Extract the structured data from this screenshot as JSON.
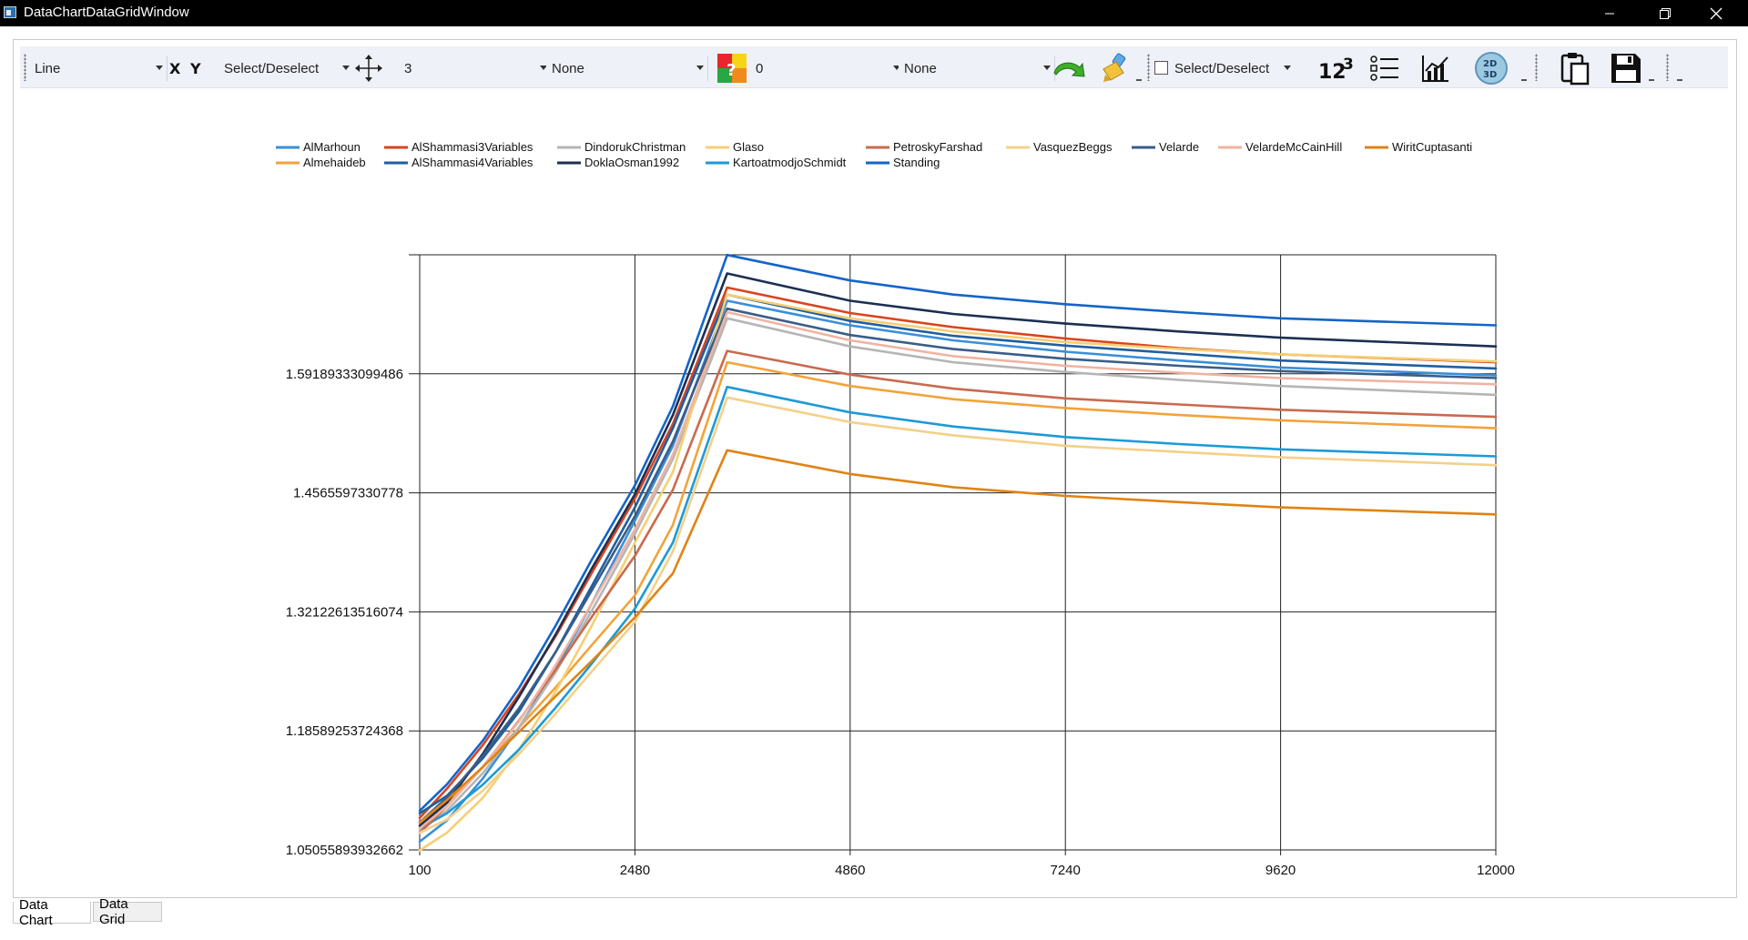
{
  "window": {
    "title": "DataChartDataGridWindow"
  },
  "toolbar": {
    "chart_type": "Line",
    "select_deselect_1": "Select/Deselect",
    "line_width": "3",
    "marker": "None",
    "offset": "0",
    "fill": "None",
    "select_deselect_2": "Select/Deselect",
    "icons": [
      "x-axis-icon",
      "y-axis-icon",
      "move-cross-icon",
      "color-palette-icon",
      "undo-arrow-icon",
      "paint-brush-icon",
      "number-format-icon",
      "legend-list-icon",
      "chart-line-icon",
      "2d-3d-toggle-icon",
      "clipboard-copy-icon",
      "save-disk-icon"
    ]
  },
  "tabs": [
    "Data Chart",
    "Data Grid"
  ],
  "chart_data": {
    "type": "line",
    "x_ticks": [
      "100",
      "2480",
      "4860",
      "7240",
      "9620",
      "12000"
    ],
    "y_ticks": [
      "1.05055893932662",
      "1.18589253724368",
      "1.32122613516074",
      "1.4565597330778",
      "1.59189333099486"
    ],
    "xlim": [
      100,
      12000
    ],
    "ylim": [
      1.05055893932662,
      1.7272269289119
    ],
    "grid": true,
    "legend_position": "top",
    "series": [
      {
        "name": "AlMarhoun",
        "color": "#3a8fd9",
        "x": [
          100,
          400,
          800,
          1200,
          1600,
          2000,
          2480,
          2900,
          3500,
          4860,
          6000,
          7240,
          8500,
          9620,
          12000
        ],
        "y": [
          1.06,
          1.084,
          1.132,
          1.19,
          1.255,
          1.33,
          1.425,
          1.51,
          1.675,
          1.647,
          1.63,
          1.617,
          1.607,
          1.599,
          1.59
        ]
      },
      {
        "name": "Almehaideb",
        "color": "#f2a33a",
        "x": [
          100,
          400,
          800,
          1200,
          1600,
          2000,
          2480,
          2900,
          3500,
          4860,
          6000,
          7240,
          8500,
          9620,
          12000
        ],
        "y": [
          1.078,
          1.104,
          1.145,
          1.19,
          1.235,
          1.283,
          1.34,
          1.42,
          1.605,
          1.578,
          1.563,
          1.553,
          1.545,
          1.539,
          1.53
        ]
      },
      {
        "name": "AlShammasi3Variables",
        "color": "#d9441e",
        "x": [
          100,
          400,
          800,
          1200,
          1600,
          2000,
          2480,
          2900,
          3500,
          4860,
          6000,
          7240,
          8500,
          9620,
          12000
        ],
        "y": [
          1.087,
          1.12,
          1.17,
          1.228,
          1.293,
          1.365,
          1.45,
          1.535,
          1.69,
          1.661,
          1.645,
          1.632,
          1.621,
          1.614,
          1.605
        ]
      },
      {
        "name": "AlShammasi4Variables",
        "color": "#1f5fa0",
        "x": [
          100,
          400,
          800,
          1200,
          1600,
          2000,
          2480,
          2900,
          3500,
          4860,
          6000,
          7240,
          8500,
          9620,
          12000
        ],
        "y": [
          1.092,
          1.112,
          1.155,
          1.208,
          1.275,
          1.35,
          1.44,
          1.53,
          1.682,
          1.652,
          1.635,
          1.624,
          1.615,
          1.607,
          1.598
        ]
      },
      {
        "name": "DindorukChristman",
        "color": "#b5b5b5",
        "x": [
          100,
          400,
          800,
          1200,
          1600,
          2000,
          2480,
          2900,
          3500,
          4860,
          6000,
          7240,
          8500,
          9620,
          12000
        ],
        "y": [
          1.072,
          1.095,
          1.138,
          1.19,
          1.252,
          1.322,
          1.41,
          1.495,
          1.655,
          1.623,
          1.605,
          1.594,
          1.585,
          1.578,
          1.568
        ]
      },
      {
        "name": "DoklaOsman1992",
        "color": "#1c2f52",
        "x": [
          100,
          400,
          800,
          1200,
          1600,
          2000,
          2480,
          2900,
          3500,
          4860,
          6000,
          7240,
          8500,
          9620,
          12000
        ],
        "y": [
          1.078,
          1.104,
          1.16,
          1.225,
          1.295,
          1.37,
          1.455,
          1.545,
          1.706,
          1.675,
          1.66,
          1.649,
          1.64,
          1.633,
          1.623
        ]
      },
      {
        "name": "Glaso",
        "color": "#f5cf72",
        "x": [
          100,
          400,
          800,
          1200,
          1600,
          2000,
          2480,
          2900,
          3500,
          4860,
          6000,
          7240,
          8500,
          9620,
          12000
        ],
        "y": [
          1.05,
          1.07,
          1.11,
          1.165,
          1.23,
          1.305,
          1.4,
          1.48,
          1.682,
          1.655,
          1.64,
          1.628,
          1.62,
          1.614,
          1.606
        ]
      },
      {
        "name": "KartoatmodjoSchmidt",
        "color": "#1d9ad6",
        "x": [
          100,
          400,
          800,
          1200,
          1600,
          2000,
          2480,
          2900,
          3500,
          4860,
          6000,
          7240,
          8500,
          9620,
          12000
        ],
        "y": [
          1.075,
          1.092,
          1.125,
          1.165,
          1.212,
          1.262,
          1.325,
          1.4,
          1.577,
          1.548,
          1.532,
          1.52,
          1.512,
          1.506,
          1.498
        ]
      },
      {
        "name": "Standing",
        "color": "#1464c8",
        "x": [
          100,
          400,
          800,
          1200,
          1600,
          2000,
          2480,
          2900,
          3500,
          4860,
          6000,
          7240,
          8500,
          9620,
          12000
        ],
        "y": [
          1.095,
          1.125,
          1.175,
          1.235,
          1.305,
          1.38,
          1.465,
          1.555,
          1.727,
          1.698,
          1.682,
          1.671,
          1.662,
          1.655,
          1.647
        ]
      },
      {
        "name": "PetroskyFarshad",
        "color": "#c96a4e",
        "x": [
          100,
          400,
          800,
          1200,
          1600,
          2000,
          2480,
          2900,
          3500,
          4860,
          6000,
          7240,
          8500,
          9620,
          12000
        ],
        "y": [
          1.07,
          1.1,
          1.145,
          1.198,
          1.255,
          1.315,
          1.385,
          1.46,
          1.618,
          1.591,
          1.575,
          1.564,
          1.557,
          1.551,
          1.543
        ]
      },
      {
        "name": "VasquezBeggs",
        "color": "#f3d08a",
        "x": [
          100,
          400,
          800,
          1200,
          1600,
          2000,
          2480,
          2900,
          3500,
          4860,
          6000,
          7240,
          8500,
          9620,
          12000
        ],
        "y": [
          1.07,
          1.085,
          1.118,
          1.16,
          1.205,
          1.253,
          1.31,
          1.39,
          1.565,
          1.537,
          1.522,
          1.51,
          1.503,
          1.497,
          1.488
        ]
      },
      {
        "name": "Velarde",
        "color": "#3a5d88",
        "x": [
          100,
          400,
          800,
          1200,
          1600,
          2000,
          2480,
          2900,
          3500,
          4860,
          6000,
          7240,
          8500,
          9620,
          12000
        ],
        "y": [
          1.082,
          1.11,
          1.158,
          1.212,
          1.275,
          1.345,
          1.43,
          1.515,
          1.666,
          1.636,
          1.62,
          1.609,
          1.601,
          1.595,
          1.587
        ]
      },
      {
        "name": "VelardeMcCainHill",
        "color": "#efb3a2",
        "x": [
          100,
          400,
          800,
          1200,
          1600,
          2000,
          2480,
          2900,
          3500,
          4860,
          6000,
          7240,
          8500,
          9620,
          12000
        ],
        "y": [
          1.075,
          1.1,
          1.145,
          1.197,
          1.26,
          1.33,
          1.415,
          1.5,
          1.662,
          1.63,
          1.612,
          1.601,
          1.593,
          1.587,
          1.58
        ]
      },
      {
        "name": "WiritCuptasanti",
        "color": "#e08314",
        "x": [
          100,
          400,
          800,
          1200,
          1600,
          2000,
          2480,
          2900,
          3500,
          4860,
          6000,
          7240,
          8500,
          9620,
          12000
        ],
        "y": [
          1.082,
          1.107,
          1.145,
          1.185,
          1.225,
          1.265,
          1.315,
          1.365,
          1.505,
          1.478,
          1.463,
          1.453,
          1.446,
          1.44,
          1.432
        ]
      }
    ]
  }
}
